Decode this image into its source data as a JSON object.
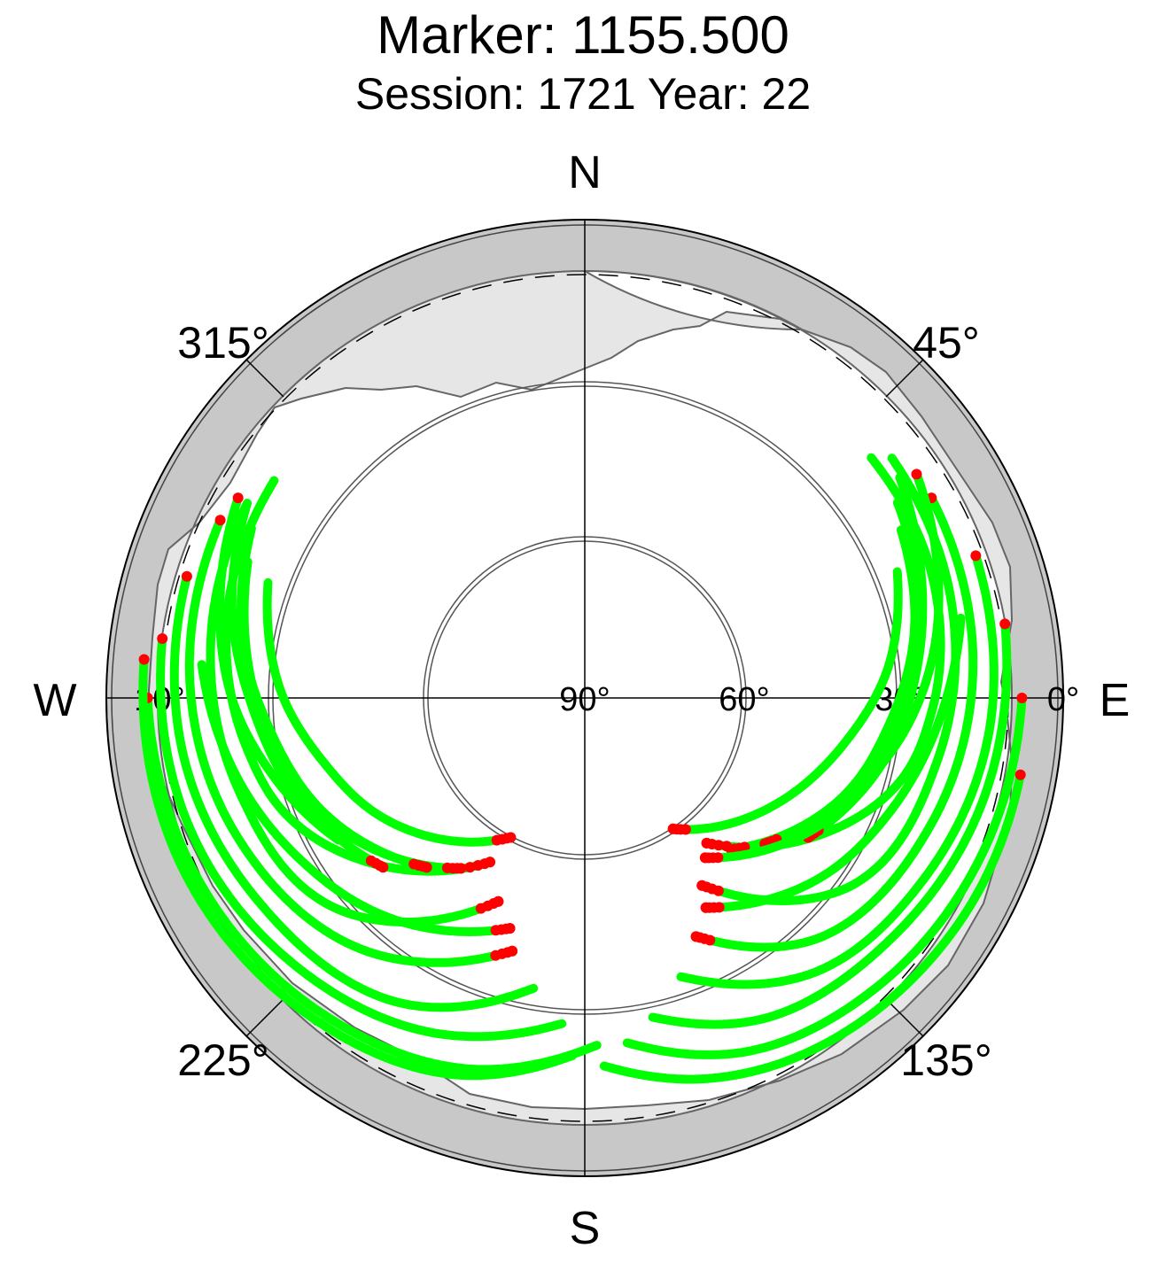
{
  "header": {
    "title": "Marker: 1155.500",
    "subtitle": "Session: 1721 Year: 22"
  },
  "chart_data": {
    "type": "scatter",
    "projection": "polar-skyplot",
    "title": "Marker: 1155.500",
    "subtitle": "Session: 1721 Year: 22",
    "compass_labels": {
      "north": "N",
      "east": "E",
      "south": "S",
      "west": "W"
    },
    "azimuth_labels": [
      "45°",
      "135°",
      "225°",
      "315°"
    ],
    "elevation_labels": [
      "0°",
      "30°",
      "60°",
      "90°",
      "10°"
    ],
    "colors": {
      "good_track": "#00ff00",
      "flagged_point": "#ff0000",
      "outer_ring": "#c8c8c8",
      "mask_area": "#e6e6e6",
      "grid": "#555555"
    },
    "legend": "none",
    "tracks": [
      {
        "pts": [
          [
            140,
            54
          ],
          [
            110,
            31
          ],
          [
            92,
            24
          ],
          [
            70,
            20
          ],
          [
            50,
            19
          ]
        ]
      },
      {
        "pts": [
          [
            148,
            48
          ],
          [
            125,
            28
          ],
          [
            100,
            22
          ],
          [
            75,
            18
          ],
          [
            52,
            16
          ]
        ]
      },
      {
        "pts": [
          [
            155,
            40
          ],
          [
            135,
            26
          ],
          [
            110,
            20
          ],
          [
            85,
            16
          ],
          [
            60,
            14
          ]
        ]
      },
      {
        "pts": [
          [
            161,
            34
          ],
          [
            140,
            22
          ],
          [
            118,
            17
          ],
          [
            95,
            13
          ],
          [
            70,
            11
          ]
        ]
      },
      {
        "pts": [
          [
            168,
            28
          ],
          [
            150,
            20
          ],
          [
            128,
            16
          ],
          [
            105,
            12
          ],
          [
            80,
            9
          ]
        ]
      },
      {
        "pts": [
          [
            173,
            24
          ],
          [
            155,
            16
          ],
          [
            135,
            12
          ],
          [
            112,
            9
          ],
          [
            90,
            7
          ]
        ]
      },
      {
        "pts": [
          [
            177,
            20
          ],
          [
            162,
            14
          ],
          [
            145,
            10
          ],
          [
            120,
            7
          ],
          [
            100,
            6
          ]
        ]
      },
      {
        "pts": [
          [
            136,
            50
          ],
          [
            112,
            38
          ],
          [
            95,
            32
          ],
          [
            78,
            26
          ],
          [
            62,
            22
          ]
        ]
      },
      {
        "pts": [
          [
            129,
            46
          ],
          [
            108,
            36
          ],
          [
            90,
            30
          ],
          [
            74,
            24
          ],
          [
            58,
            20
          ]
        ]
      },
      {
        "pts": [
          [
            122,
            40
          ],
          [
            102,
            32
          ],
          [
            86,
            27
          ],
          [
            70,
            22
          ],
          [
            55,
            17
          ]
        ]
      },
      {
        "pts": [
          [
            150,
            44
          ],
          [
            128,
            34
          ],
          [
            110,
            28
          ],
          [
            92,
            22
          ],
          [
            78,
            17
          ]
        ]
      },
      {
        "pts": [
          [
            143,
            52
          ],
          [
            120,
            40
          ],
          [
            104,
            33
          ],
          [
            88,
            28
          ],
          [
            73,
            23
          ]
        ]
      },
      {
        "pts": [
          [
            146,
            60
          ],
          [
            118,
            48
          ],
          [
            100,
            40
          ],
          [
            84,
            32
          ],
          [
            68,
            26
          ]
        ]
      },
      {
        "pts": [
          [
            110,
            36
          ],
          [
            96,
            29
          ],
          [
            82,
            23
          ],
          [
            68,
            18
          ],
          [
            56,
            14
          ]
        ]
      },
      {
        "pts": [
          [
            210,
            54
          ],
          [
            243,
            32
          ],
          [
            262,
            25
          ],
          [
            285,
            20
          ],
          [
            305,
            18
          ]
        ]
      },
      {
        "pts": [
          [
            203,
            48
          ],
          [
            230,
            28
          ],
          [
            255,
            22
          ],
          [
            280,
            18
          ],
          [
            300,
            16
          ]
        ]
      },
      {
        "pts": [
          [
            196,
            40
          ],
          [
            222,
            26
          ],
          [
            248,
            19
          ],
          [
            272,
            15
          ],
          [
            296,
            13
          ]
        ]
      },
      {
        "pts": [
          [
            190,
            34
          ],
          [
            212,
            22
          ],
          [
            238,
            17
          ],
          [
            262,
            13
          ],
          [
            287,
            11
          ]
        ]
      },
      {
        "pts": [
          [
            184,
            28
          ],
          [
            205,
            20
          ],
          [
            228,
            15
          ],
          [
            252,
            11
          ],
          [
            278,
            9
          ]
        ]
      },
      {
        "pts": [
          [
            178,
            24
          ],
          [
            198,
            16
          ],
          [
            220,
            12
          ],
          [
            244,
            9
          ],
          [
            270,
            7
          ]
        ]
      },
      {
        "pts": [
          [
            182,
            22
          ],
          [
            200,
            14
          ],
          [
            222,
            10
          ],
          [
            248,
            7
          ],
          [
            275,
            6
          ]
        ]
      },
      {
        "pts": [
          [
            216,
            50
          ],
          [
            240,
            38
          ],
          [
            258,
            31
          ],
          [
            275,
            26
          ],
          [
            292,
            21
          ]
        ]
      },
      {
        "pts": [
          [
            223,
            46
          ],
          [
            246,
            36
          ],
          [
            264,
            30
          ],
          [
            280,
            24
          ],
          [
            297,
            19
          ]
        ]
      },
      {
        "pts": [
          [
            230,
            40
          ],
          [
            252,
            32
          ],
          [
            268,
            27
          ],
          [
            284,
            21
          ],
          [
            300,
            16
          ]
        ]
      },
      {
        "pts": [
          [
            208,
            60
          ],
          [
            238,
            46
          ],
          [
            256,
            39
          ],
          [
            272,
            32
          ],
          [
            290,
            26
          ]
        ]
      },
      {
        "pts": [
          [
            240,
            36
          ],
          [
            256,
            29
          ],
          [
            270,
            23
          ],
          [
            286,
            18
          ],
          [
            300,
            14
          ]
        ]
      },
      {
        "pts": [
          [
            198,
            44
          ],
          [
            222,
            34
          ],
          [
            240,
            28
          ],
          [
            258,
            22
          ],
          [
            275,
            17
          ]
        ]
      }
    ]
  }
}
